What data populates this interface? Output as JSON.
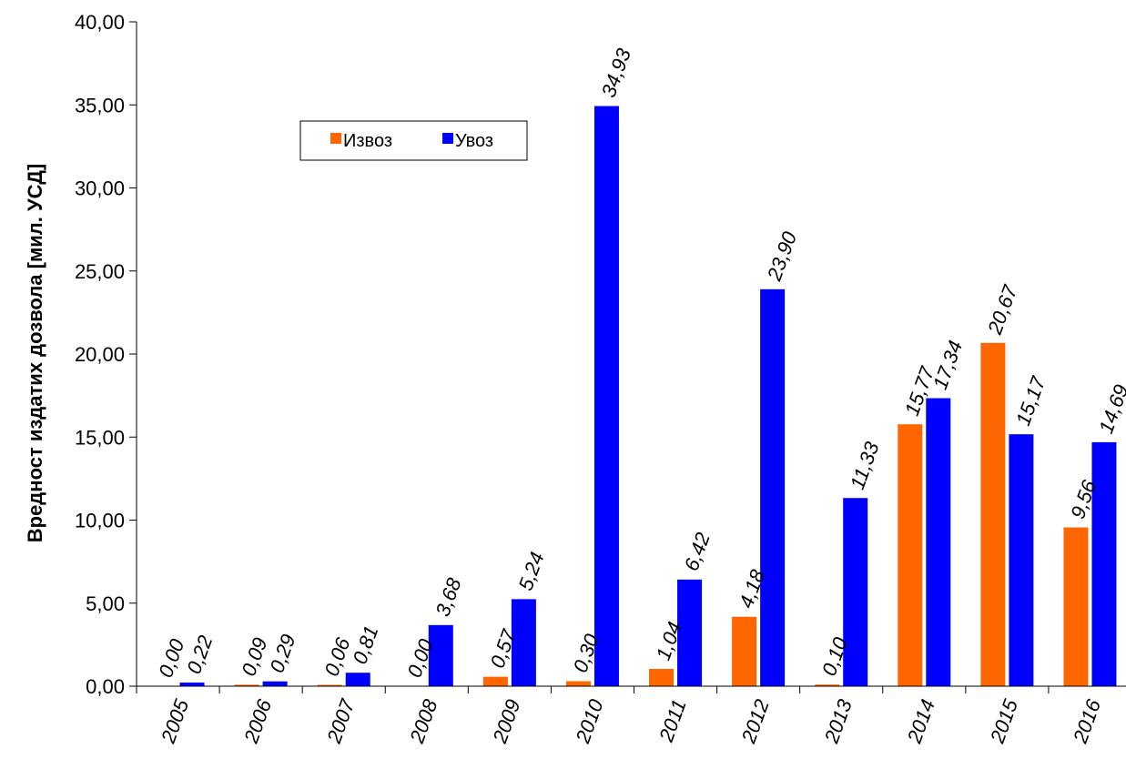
{
  "chart_data": {
    "type": "bar",
    "title": "",
    "xlabel": "",
    "ylabel": "Вредност издатих дозвола [мил.  УСД]",
    "ylim": [
      0,
      40
    ],
    "y_ticks": [
      "0,00",
      "5,00",
      "10,00",
      "15,00",
      "20,00",
      "25,00",
      "30,00",
      "35,00",
      "40,00"
    ],
    "grid": false,
    "legend_position": "top-center",
    "categories": [
      "2005",
      "2006",
      "2007",
      "2008",
      "2009",
      "2010",
      "2011",
      "2012",
      "2013",
      "2014",
      "2015",
      "2016"
    ],
    "series": [
      {
        "name": "Извоз",
        "color": "#FF6600",
        "values": [
          0.0,
          0.09,
          0.06,
          0.0,
          0.57,
          0.3,
          1.04,
          4.18,
          0.1,
          15.77,
          20.67,
          9.56
        ],
        "labels": [
          "0,00",
          "0,09",
          "0,06",
          "0,00",
          "0,57",
          "0,30",
          "1,04",
          "4,18",
          "0,10",
          "15,77",
          "20,67",
          "9,56"
        ]
      },
      {
        "name": "Увоз",
        "color": "#0000FF",
        "values": [
          0.22,
          0.29,
          0.81,
          3.68,
          5.24,
          34.93,
          6.42,
          23.9,
          11.33,
          17.34,
          15.17,
          14.69
        ],
        "labels": [
          "0,22",
          "0,29",
          "0,81",
          "3,68",
          "5,24",
          "34,93",
          "6,42",
          "23,90",
          "11,33",
          "17,34",
          "15,17",
          "14,69"
        ]
      }
    ]
  }
}
